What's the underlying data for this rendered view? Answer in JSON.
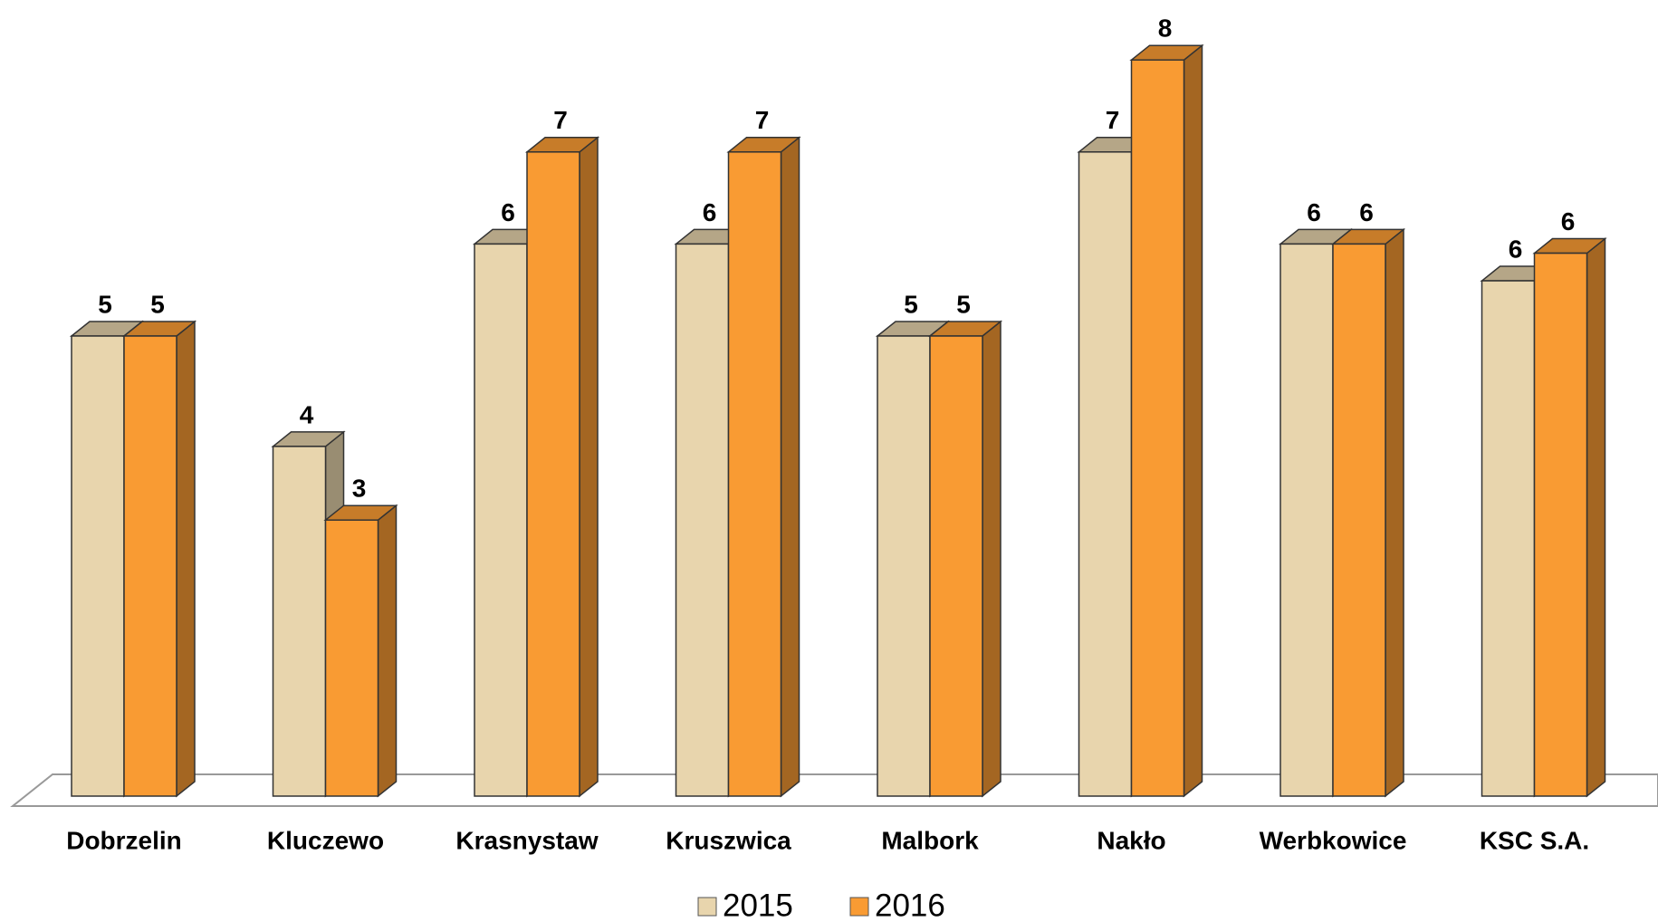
{
  "chart_data": {
    "type": "bar3d",
    "categories": [
      "Dobrzelin",
      "Kluczewo",
      "Krasnystaw",
      "Kruszwica",
      "Malbork",
      "Nakło",
      "Werbkowice",
      "KSC S.A."
    ],
    "series": [
      {
        "name": "2015",
        "color": "#e8d5ad",
        "values": [
          5,
          3.8,
          6,
          6,
          5,
          7,
          6,
          5.6
        ],
        "value_labels": [
          "5",
          "4",
          "6",
          "6",
          "5",
          "7",
          "6",
          "6"
        ]
      },
      {
        "name": "2016",
        "color": "#f99b33",
        "values": [
          5,
          3,
          7,
          7,
          5,
          8,
          6,
          5.9
        ],
        "value_labels": [
          "5",
          "3",
          "7",
          "7",
          "5",
          "8",
          "6",
          "6"
        ]
      }
    ],
    "legend": "bottom"
  }
}
